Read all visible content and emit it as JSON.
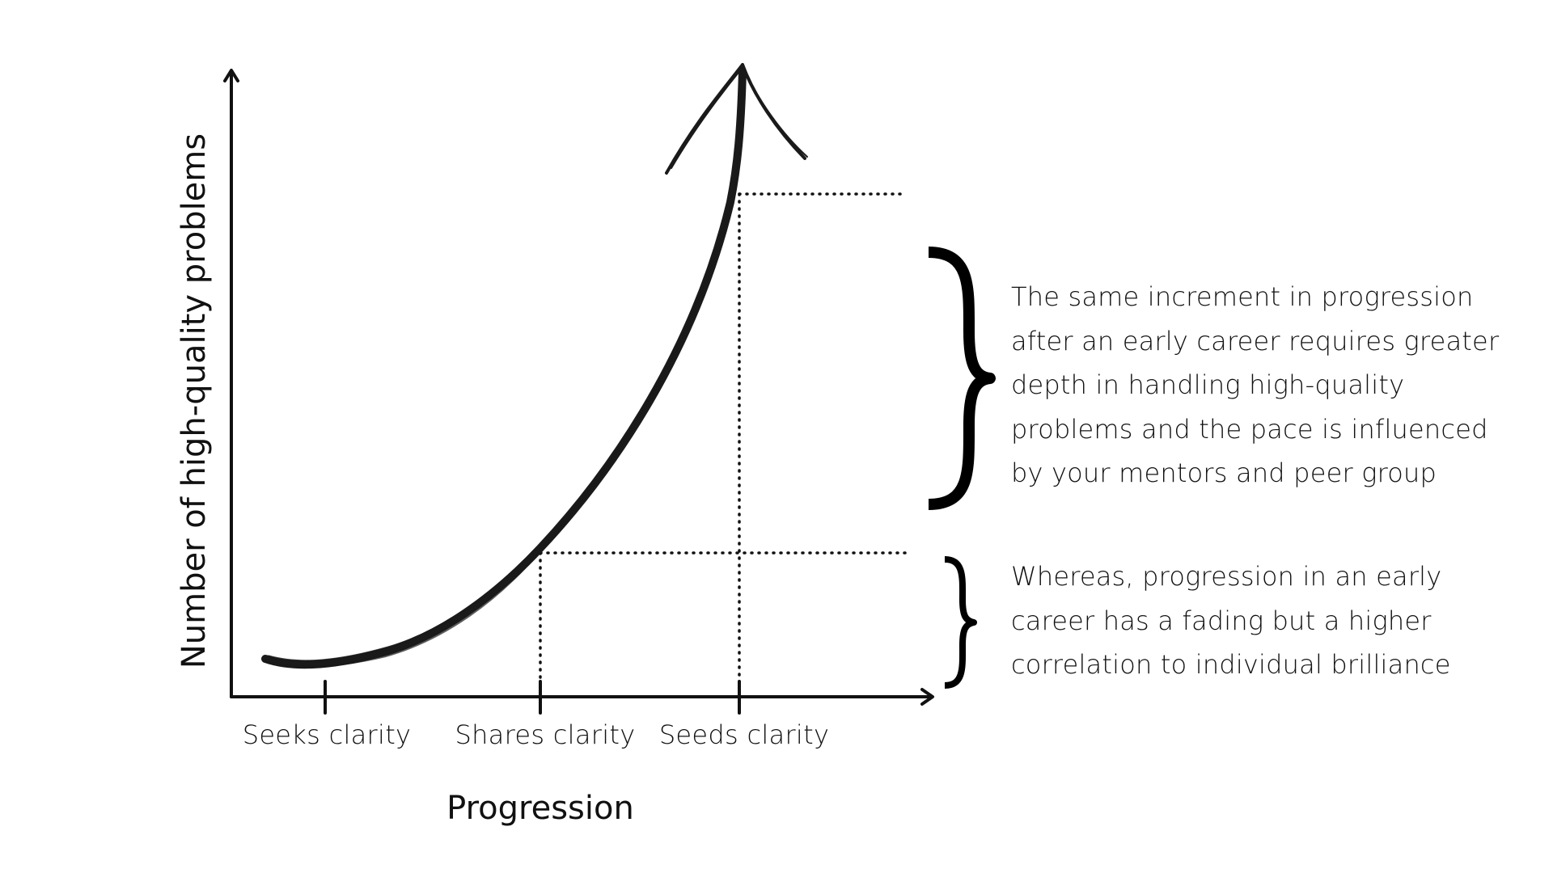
{
  "diagram": {
    "x_axis_label": "Progression",
    "y_axis_label": "Number of high-quality problems",
    "stages": [
      "Seeks clarity",
      "Shares clarity",
      "Seeds clarity"
    ],
    "annotations": [
      {
        "lines": [
          "The same increment in progression",
          "after an early career requires greater",
          "depth in handling high-quality",
          "problems and the pace is influenced",
          "by your mentors and peer group"
        ]
      },
      {
        "lines": [
          "Whereas, progression in an early",
          "career has a fading but a higher",
          "correlation to individual brilliance"
        ]
      }
    ],
    "colors": {
      "ink": "#1a1a1a",
      "background": "#ffffff"
    },
    "icons": [
      "axis-arrow-icon",
      "curly-brace-icon",
      "curve-arrowhead-icon"
    ]
  }
}
